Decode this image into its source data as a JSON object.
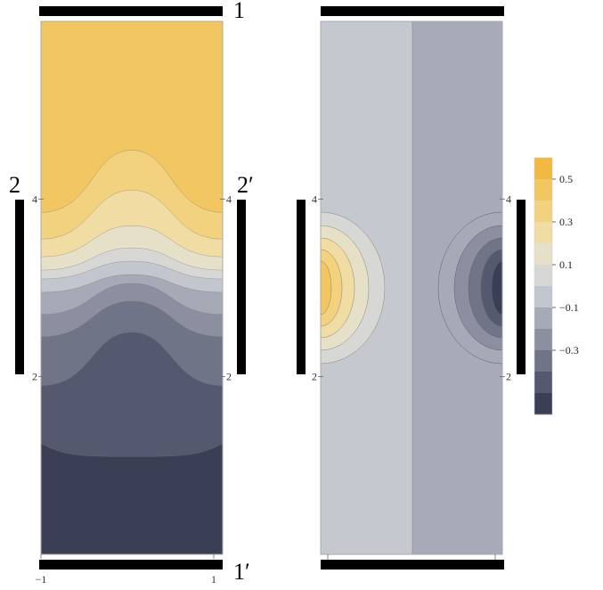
{
  "chart_data": [
    {
      "type": "heatmap",
      "title": "",
      "xlim": [
        -1,
        1
      ],
      "ylim": [
        0,
        6
      ],
      "x_tick_labels": [
        "−1",
        "1"
      ],
      "y_tick_labels": [
        "2",
        "4"
      ],
      "port_labels": {
        "top": "1",
        "bottom": "1′",
        "left": "2",
        "right": "2′"
      },
      "bands_top_to_bottom": [
        0.5,
        0.4,
        0.3,
        0.2,
        0.1,
        0.0,
        -0.1,
        -0.2,
        -0.3,
        -0.4,
        -0.5
      ],
      "centerline_peaks": [
        4.55,
        4.1,
        3.7,
        3.45,
        3.3,
        3.15,
        3.05,
        2.85,
        2.5,
        1.1
      ],
      "edge_levels": [
        3.85,
        3.55,
        3.35,
        3.2,
        3.1,
        2.95,
        2.7,
        2.45,
        1.9,
        1.25
      ]
    },
    {
      "type": "heatmap",
      "title": "",
      "xlim": [
        -1,
        1
      ],
      "ylim": [
        0,
        6
      ],
      "y_tick_labels": [
        "2",
        "4"
      ],
      "background_left": -0.05,
      "background_right": 0.05,
      "lobes": [
        {
          "side": "left",
          "center_y": 3.0,
          "values": [
            0.1,
            0.2,
            0.3,
            0.4,
            0.5
          ]
        },
        {
          "side": "right",
          "center_y": 3.0,
          "values": [
            -0.1,
            -0.2,
            -0.3,
            -0.4,
            -0.5
          ]
        }
      ],
      "legend": {
        "tick_labels": [
          "0.5",
          "0.3",
          "0.1",
          "−0.1",
          "−0.3"
        ],
        "levels_top_to_bottom": [
          0.6,
          0.5,
          0.4,
          0.3,
          0.2,
          0.1,
          0.0,
          -0.1,
          -0.2,
          -0.3,
          -0.4,
          -0.5
        ]
      }
    }
  ],
  "palette": {
    "bands": [
      "#f1b941",
      "#f2c661",
      "#f2d27f",
      "#f1dca3",
      "#e6e0c9",
      "#d7d8d6",
      "#c4c6cf",
      "#a6a9b6",
      "#8b8f9f",
      "#6f7487",
      "#54596f",
      "#3a3f55"
    ],
    "frame": "#999999",
    "port_bar": "#000000"
  }
}
